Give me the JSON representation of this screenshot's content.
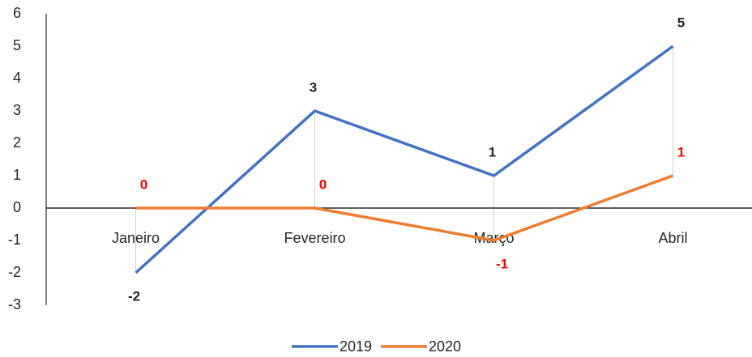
{
  "chart_data": {
    "type": "line",
    "categories": [
      "Janeiro",
      "Fevereiro",
      "Março",
      "Abril"
    ],
    "series": [
      {
        "name": "2019",
        "color": "#4472c4",
        "label_color": "#262626",
        "values": [
          -2,
          3,
          1,
          5
        ]
      },
      {
        "name": "2020",
        "color": "#ed7d31",
        "label_color": "#ff0000",
        "values": [
          0,
          0,
          -1,
          1
        ]
      }
    ],
    "ylim": [
      -3,
      6
    ],
    "yticks": [
      -3,
      -2,
      -1,
      0,
      1,
      2,
      3,
      4,
      5,
      6
    ],
    "legend": "bottom"
  }
}
